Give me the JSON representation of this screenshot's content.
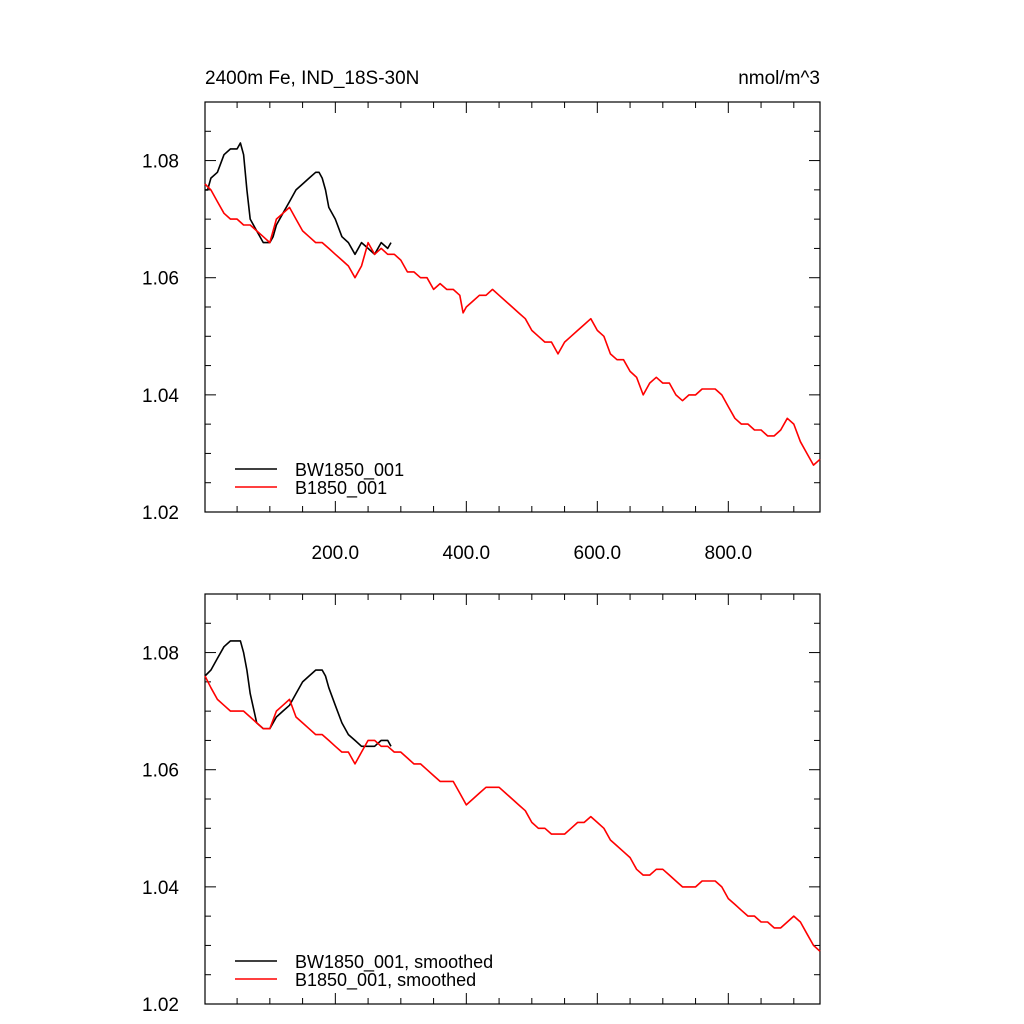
{
  "figure": {
    "title_left": "2400m Fe, IND_18S-30N",
    "title_right": "nmol/m^3"
  },
  "chart_data": [
    {
      "type": "line",
      "xlim": [
        1,
        940
      ],
      "ylim": [
        1.02,
        1.09
      ],
      "yticks": [
        "1.02",
        "1.04",
        "1.06",
        "1.08"
      ],
      "xticks": [
        "200.0",
        "400.0",
        "600.0",
        "800.0"
      ],
      "grid": false,
      "legend_position": "bottom-left",
      "series": [
        {
          "name": "BW1850_001",
          "color": "#000000",
          "x": [
            1,
            5,
            10,
            20,
            30,
            40,
            50,
            55,
            60,
            65,
            70,
            80,
            90,
            100,
            105,
            110,
            120,
            130,
            140,
            150,
            160,
            170,
            175,
            180,
            185,
            190,
            200,
            210,
            220,
            230,
            240,
            250,
            260,
            270,
            280,
            285
          ],
          "y": [
            1.075,
            1.075,
            1.077,
            1.078,
            1.081,
            1.082,
            1.082,
            1.083,
            1.081,
            1.075,
            1.07,
            1.068,
            1.066,
            1.066,
            1.067,
            1.069,
            1.071,
            1.073,
            1.075,
            1.076,
            1.077,
            1.078,
            1.078,
            1.077,
            1.075,
            1.072,
            1.07,
            1.067,
            1.066,
            1.064,
            1.066,
            1.065,
            1.064,
            1.066,
            1.065,
            1.066
          ]
        },
        {
          "name": "B1850_001",
          "color": "#ff0000",
          "x": [
            1,
            10,
            20,
            30,
            40,
            50,
            60,
            70,
            80,
            90,
            100,
            110,
            120,
            130,
            140,
            150,
            160,
            170,
            180,
            190,
            200,
            210,
            220,
            230,
            240,
            250,
            260,
            270,
            280,
            290,
            300,
            310,
            320,
            330,
            340,
            350,
            360,
            370,
            380,
            390,
            395,
            400,
            410,
            420,
            430,
            440,
            450,
            460,
            470,
            480,
            490,
            500,
            510,
            520,
            530,
            540,
            550,
            560,
            570,
            580,
            590,
            600,
            610,
            620,
            630,
            640,
            650,
            660,
            670,
            680,
            690,
            700,
            710,
            720,
            730,
            740,
            750,
            760,
            770,
            780,
            790,
            800,
            810,
            820,
            830,
            840,
            850,
            860,
            870,
            880,
            890,
            900,
            910,
            920,
            930,
            940
          ],
          "y": [
            1.076,
            1.075,
            1.073,
            1.071,
            1.07,
            1.07,
            1.069,
            1.069,
            1.068,
            1.067,
            1.066,
            1.07,
            1.071,
            1.072,
            1.07,
            1.068,
            1.067,
            1.066,
            1.066,
            1.065,
            1.064,
            1.063,
            1.062,
            1.06,
            1.062,
            1.066,
            1.064,
            1.065,
            1.064,
            1.064,
            1.063,
            1.061,
            1.061,
            1.06,
            1.06,
            1.058,
            1.059,
            1.058,
            1.058,
            1.057,
            1.054,
            1.055,
            1.056,
            1.057,
            1.057,
            1.058,
            1.057,
            1.056,
            1.055,
            1.054,
            1.053,
            1.051,
            1.05,
            1.049,
            1.049,
            1.047,
            1.049,
            1.05,
            1.051,
            1.052,
            1.053,
            1.051,
            1.05,
            1.047,
            1.046,
            1.046,
            1.044,
            1.043,
            1.04,
            1.042,
            1.043,
            1.042,
            1.042,
            1.04,
            1.039,
            1.04,
            1.04,
            1.041,
            1.041,
            1.041,
            1.04,
            1.038,
            1.036,
            1.035,
            1.035,
            1.034,
            1.034,
            1.033,
            1.033,
            1.034,
            1.036,
            1.035,
            1.032,
            1.03,
            1.028,
            1.029
          ]
        }
      ]
    },
    {
      "type": "line",
      "xlim": [
        1,
        940
      ],
      "ylim": [
        1.02,
        1.09
      ],
      "yticks": [
        "1.02",
        "1.04",
        "1.06",
        "1.08"
      ],
      "xticks": [],
      "grid": false,
      "legend_position": "bottom-left",
      "series": [
        {
          "name": "BW1850_001, smoothed",
          "color": "#000000",
          "x": [
            1,
            10,
            20,
            30,
            40,
            50,
            55,
            60,
            65,
            70,
            80,
            90,
            100,
            110,
            120,
            130,
            140,
            150,
            160,
            170,
            180,
            185,
            190,
            200,
            210,
            220,
            230,
            240,
            250,
            260,
            270,
            280,
            285
          ],
          "y": [
            1.076,
            1.077,
            1.079,
            1.081,
            1.082,
            1.082,
            1.082,
            1.08,
            1.077,
            1.073,
            1.068,
            1.067,
            1.067,
            1.069,
            1.07,
            1.071,
            1.073,
            1.075,
            1.076,
            1.077,
            1.077,
            1.076,
            1.074,
            1.071,
            1.068,
            1.066,
            1.065,
            1.064,
            1.064,
            1.064,
            1.065,
            1.065,
            1.064
          ]
        },
        {
          "name": "B1850_001, smoothed",
          "color": "#ff0000",
          "x": [
            1,
            10,
            20,
            30,
            40,
            50,
            60,
            70,
            80,
            90,
            100,
            110,
            120,
            130,
            140,
            150,
            160,
            170,
            180,
            190,
            200,
            210,
            220,
            230,
            240,
            250,
            260,
            270,
            280,
            290,
            300,
            310,
            320,
            330,
            340,
            350,
            360,
            370,
            380,
            390,
            400,
            410,
            420,
            430,
            440,
            450,
            460,
            470,
            480,
            490,
            500,
            510,
            520,
            530,
            540,
            550,
            560,
            570,
            580,
            590,
            600,
            610,
            620,
            630,
            640,
            650,
            660,
            670,
            680,
            690,
            700,
            710,
            720,
            730,
            740,
            750,
            760,
            770,
            780,
            790,
            800,
            810,
            820,
            830,
            840,
            850,
            860,
            870,
            880,
            890,
            900,
            910,
            920,
            930,
            940
          ],
          "y": [
            1.076,
            1.074,
            1.072,
            1.071,
            1.07,
            1.07,
            1.07,
            1.069,
            1.068,
            1.067,
            1.067,
            1.07,
            1.071,
            1.072,
            1.069,
            1.068,
            1.067,
            1.066,
            1.066,
            1.065,
            1.064,
            1.063,
            1.063,
            1.061,
            1.063,
            1.065,
            1.065,
            1.064,
            1.064,
            1.063,
            1.063,
            1.062,
            1.061,
            1.061,
            1.06,
            1.059,
            1.058,
            1.058,
            1.058,
            1.056,
            1.054,
            1.055,
            1.056,
            1.057,
            1.057,
            1.057,
            1.056,
            1.055,
            1.054,
            1.053,
            1.051,
            1.05,
            1.05,
            1.049,
            1.049,
            1.049,
            1.05,
            1.051,
            1.051,
            1.052,
            1.051,
            1.05,
            1.048,
            1.047,
            1.046,
            1.045,
            1.043,
            1.042,
            1.042,
            1.043,
            1.043,
            1.042,
            1.041,
            1.04,
            1.04,
            1.04,
            1.041,
            1.041,
            1.041,
            1.04,
            1.038,
            1.037,
            1.036,
            1.035,
            1.035,
            1.034,
            1.034,
            1.033,
            1.033,
            1.034,
            1.035,
            1.034,
            1.032,
            1.03,
            1.029
          ]
        }
      ]
    }
  ]
}
